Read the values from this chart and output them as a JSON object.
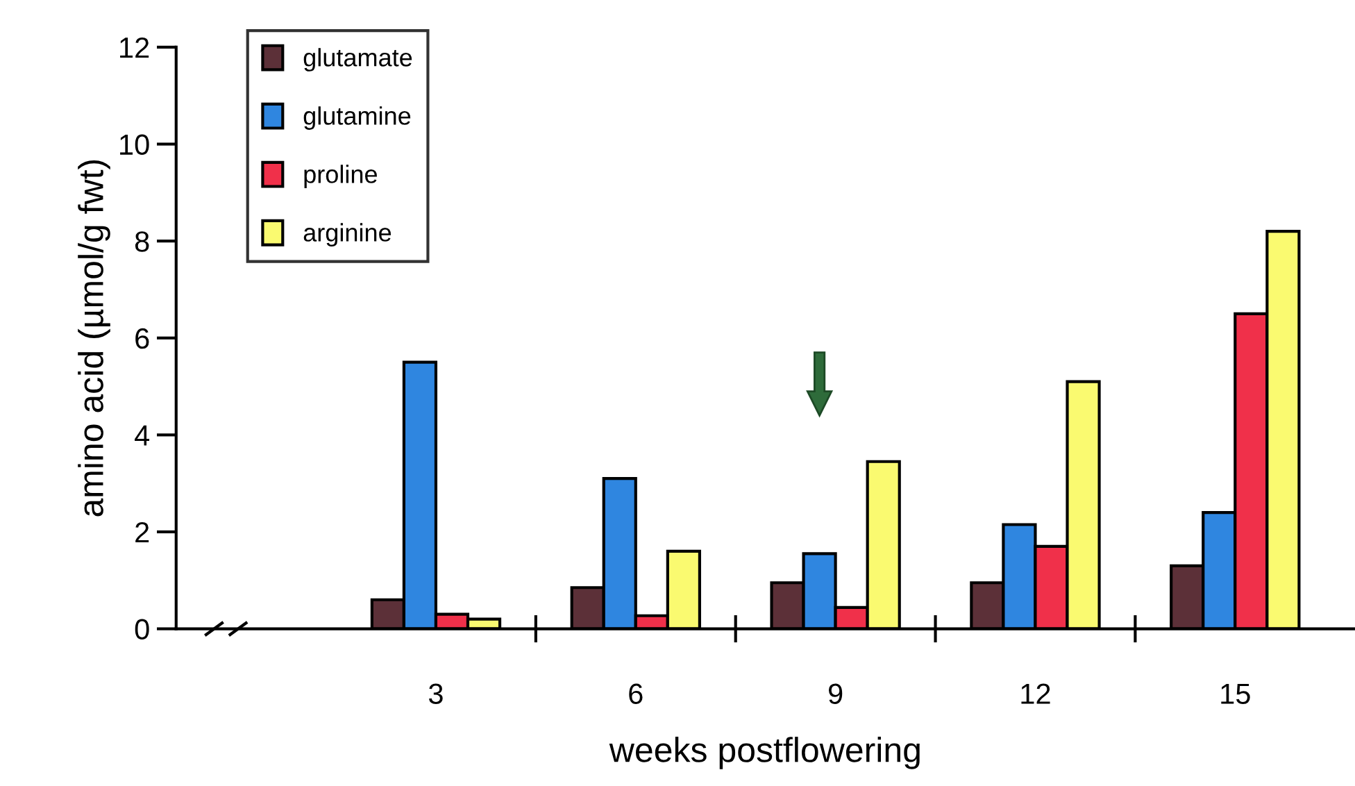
{
  "chart_data": {
    "type": "bar",
    "xlabel": "weeks postflowering",
    "ylabel": "amino acid (µmol/g fwt)",
    "categories": [
      "3",
      "6",
      "9",
      "12",
      "15"
    ],
    "series": [
      {
        "name": "glutamate",
        "color": "#5c3038",
        "values": [
          0.6,
          0.85,
          0.95,
          0.95,
          1.3
        ]
      },
      {
        "name": "glutamine",
        "color": "#2f86e0",
        "values": [
          5.5,
          3.1,
          1.55,
          2.15,
          2.4
        ]
      },
      {
        "name": "proline",
        "color": "#f0304a",
        "values": [
          0.3,
          0.27,
          0.44,
          1.7,
          6.5
        ]
      },
      {
        "name": "arginine",
        "color": "#fafa70",
        "values": [
          0.2,
          1.6,
          3.45,
          5.1,
          8.2
        ]
      }
    ],
    "ylim": [
      0,
      12
    ],
    "yticks": [
      0,
      2,
      4,
      6,
      8,
      10,
      12
    ],
    "grid": false,
    "legend": "top left"
  }
}
